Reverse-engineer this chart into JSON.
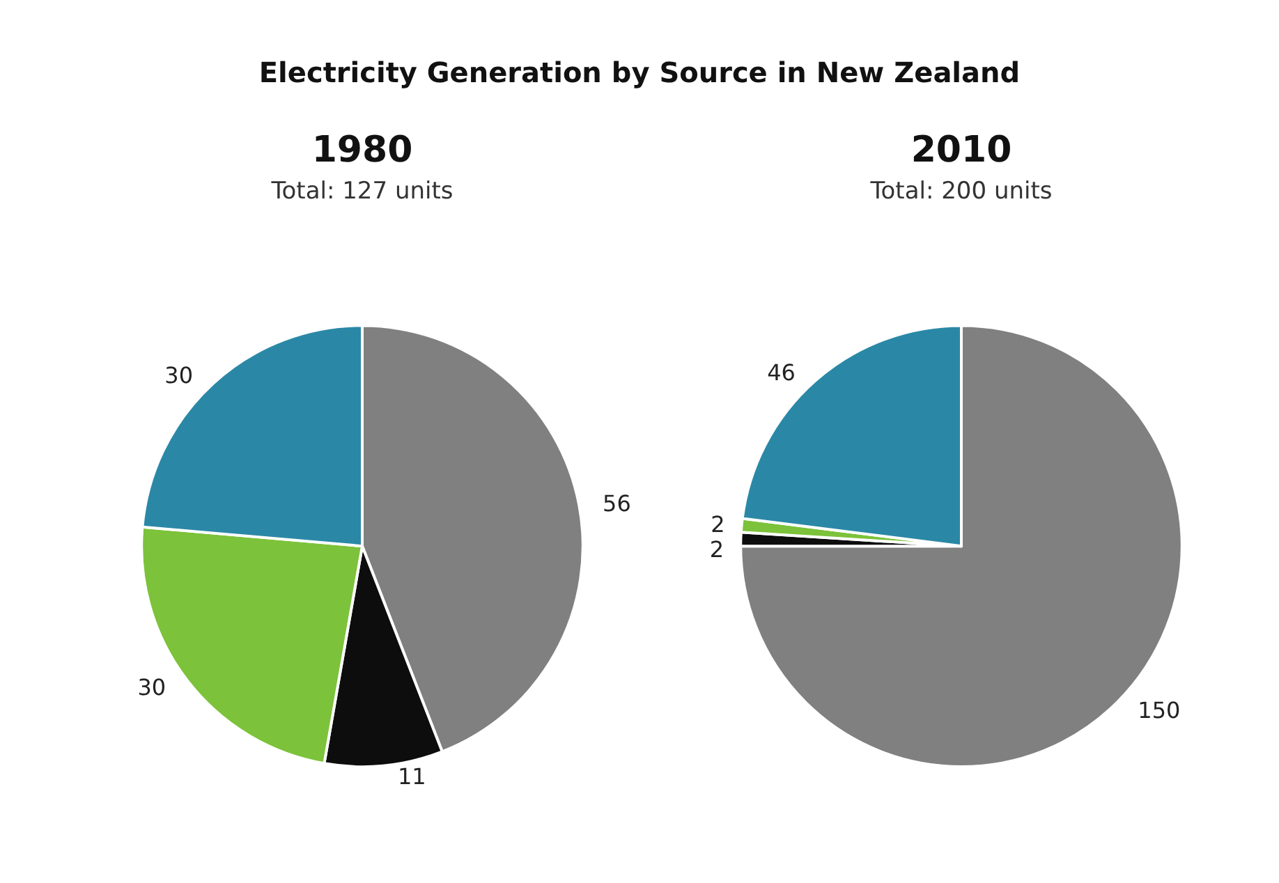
{
  "chart_data": [
    {
      "type": "pie",
      "title": "1980",
      "subtitle": "Total: 127 units",
      "annotations": [
        "Electricity Generation by Source in New Zealand"
      ],
      "categories": [
        null,
        null,
        null,
        null
      ],
      "values": [
        56,
        11,
        30,
        30
      ],
      "colors": [
        "#808080",
        "#0d0d0d",
        "#7cc23a",
        "#2a88a6"
      ],
      "data_labels": true,
      "legend": false
    },
    {
      "type": "pie",
      "title": "2010",
      "subtitle": "Total: 200 units",
      "categories": [
        null,
        null,
        null,
        null
      ],
      "values": [
        150,
        2,
        2,
        46
      ],
      "colors": [
        "#808080",
        "#0d0d0d",
        "#7cc23a",
        "#2a88a6"
      ],
      "data_labels": true,
      "legend": false
    }
  ]
}
